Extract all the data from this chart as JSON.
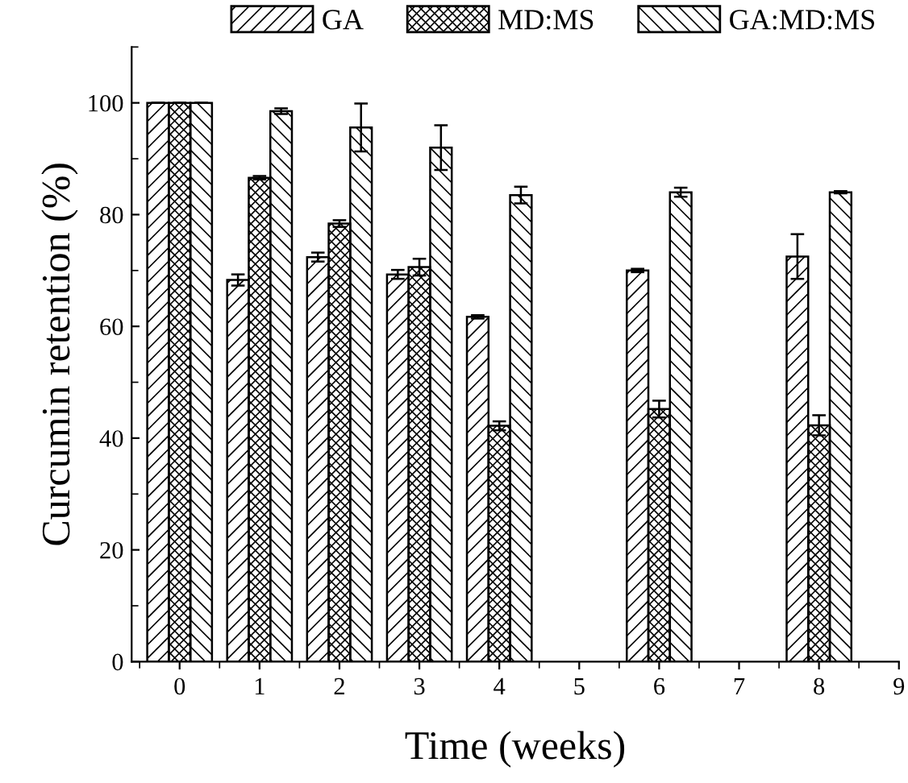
{
  "chart_data": {
    "type": "bar",
    "xlabel": "Time (weeks)",
    "ylabel": "Curcumin retention (%)",
    "x": [
      0,
      1,
      2,
      3,
      4,
      6,
      8
    ],
    "series": [
      {
        "name": "GA",
        "color": "#000000",
        "values": [
          100,
          68.3,
          72.4,
          69.3,
          61.7,
          70,
          72.5
        ],
        "errors": [
          0,
          1,
          0.8,
          0.8,
          0.3,
          0.3,
          4
        ]
      },
      {
        "name": "MD:MS",
        "color": "#000000",
        "values": [
          100,
          86.6,
          78.4,
          70.6,
          42.2,
          45.2,
          42.3
        ],
        "errors": [
          0,
          0.3,
          0.6,
          1.5,
          0.8,
          1.5,
          1.8
        ]
      },
      {
        "name": "GA:MD:MS",
        "color": "#000000",
        "values": [
          100,
          98.5,
          95.6,
          92,
          83.5,
          84,
          84
        ],
        "errors": [
          0,
          0.5,
          4.3,
          4,
          1.5,
          0.8,
          0.2
        ]
      }
    ],
    "xlim": [
      -0.6,
      9
    ],
    "ylim": [
      0,
      110
    ],
    "xticks": [
      0,
      1,
      2,
      3,
      4,
      5,
      6,
      7,
      8,
      9
    ],
    "yticks": [
      0,
      20,
      40,
      60,
      80,
      100
    ],
    "grid": false,
    "legend": "top"
  }
}
